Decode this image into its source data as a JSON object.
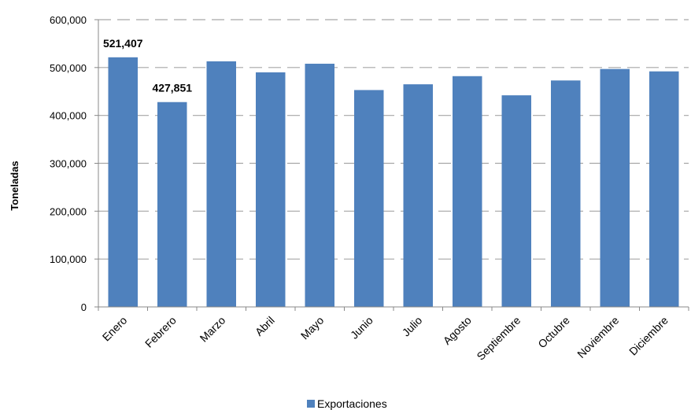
{
  "chart_data": {
    "type": "bar",
    "ylabel": "Toneladas",
    "xlabel": "",
    "ylim": [
      0,
      600000
    ],
    "y_ticks": [
      0,
      100000,
      200000,
      300000,
      400000,
      500000,
      600000
    ],
    "y_tick_labels": [
      "0",
      "100,000",
      "200,000",
      "300,000",
      "400,000",
      "500,000",
      "600,000"
    ],
    "grid": true,
    "grid_style": "dashed",
    "legend_position": "bottom",
    "categories": [
      "Enero",
      "Febrero",
      "Marzo",
      "Abril",
      "Mayo",
      "Junio",
      "Julio",
      "Agosto",
      "Septiembre",
      "Octubre",
      "Noviembre",
      "Diciembre"
    ],
    "series": [
      {
        "name": "Exportaciones",
        "color": "#4f81bd",
        "values": [
          521407,
          427851,
          513000,
          490000,
          508000,
          453000,
          465000,
          482000,
          442000,
          473000,
          497000,
          492000
        ]
      }
    ],
    "data_labels": [
      {
        "index": 0,
        "text": "521,407"
      },
      {
        "index": 1,
        "text": "427,851"
      }
    ]
  }
}
